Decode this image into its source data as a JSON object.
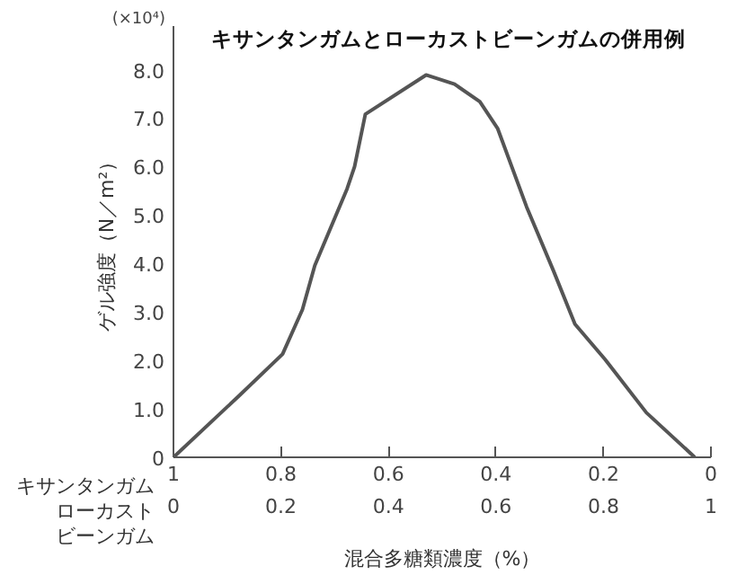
{
  "chart_data": {
    "type": "line",
    "title": "キサンタンガムとローカストビーンガムの併用例",
    "xlabel": "混合多糖類濃度（%）",
    "ylabel": "ゲル強度（N／m²）",
    "x": [
      1,
      0.877,
      0.797,
      0.76,
      0.737,
      0.677,
      0.663,
      0.643,
      0.53,
      0.477,
      0.43,
      0.397,
      0.343,
      0.293,
      0.253,
      0.197,
      0.12,
      0.03
    ],
    "series": [
      {
        "color": "#555555",
        "values": [
          0,
          1.28,
          2.13,
          3.05,
          3.96,
          5.54,
          6.0,
          7.08,
          7.89,
          7.7,
          7.34,
          6.79,
          5.17,
          3.85,
          2.75,
          2.02,
          0.92,
          0
        ]
      }
    ],
    "xlim": [
      1,
      0
    ],
    "xticks": [
      1,
      0.8,
      0.6,
      0.4,
      0.2,
      0
    ],
    "x2lim": [
      0,
      1
    ],
    "x2ticks": [
      0,
      0.2,
      0.4,
      0.6,
      0.8,
      1
    ],
    "ylim": [
      0,
      8.9
    ],
    "yticks": [
      0,
      {
        "value": 1,
        "label": "1.0"
      },
      {
        "value": 2,
        "label": "2.0"
      },
      {
        "value": 3,
        "label": "3.0"
      },
      {
        "value": 4,
        "label": "4.0"
      },
      {
        "value": 5,
        "label": "5.0"
      },
      {
        "value": 6,
        "label": "6.0"
      },
      {
        "value": 7,
        "label": "7.0"
      },
      {
        "value": 8,
        "label": "8.0"
      }
    ],
    "grid": false,
    "marker": "none",
    "line_style": "solid",
    "annotations": [
      "(×10⁴)",
      "キサンタンガム",
      "ローカストビーンガム"
    ]
  }
}
